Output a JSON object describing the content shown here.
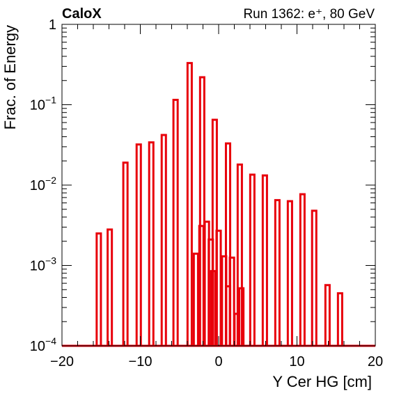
{
  "chart_data": {
    "type": "bar",
    "style": "histogram-steps",
    "label_left": "CaloX",
    "label_right": "Run 1362: e⁺, 80 GeV",
    "xlabel": "Y Cer HG [cm]",
    "ylabel": "Frac. of Energy",
    "xlim": [
      -20,
      20
    ],
    "ylim": [
      0.0001,
      1
    ],
    "yscale": "log",
    "x_ticks": [
      {
        "value": -20,
        "label": "−20"
      },
      {
        "value": -10,
        "label": "−10"
      },
      {
        "value": 0,
        "label": "0"
      },
      {
        "value": 10,
        "label": "10"
      },
      {
        "value": 20,
        "label": "20"
      }
    ],
    "y_ticks": [
      {
        "exp": -4,
        "label_base": "10",
        "label_exp": "−4"
      },
      {
        "exp": -3,
        "label_base": "10",
        "label_exp": "−3"
      },
      {
        "exp": -2,
        "label_base": "10",
        "label_exp": "−2"
      },
      {
        "exp": -1,
        "label_base": "10",
        "label_exp": "−1"
      },
      {
        "exp": 0,
        "label_base": "1",
        "label_exp": ""
      }
    ],
    "grid": false,
    "series": [
      {
        "color": "#e8000b",
        "points": [
          [
            -15.3,
            0.0025
          ],
          [
            -13.9,
            0.0028
          ],
          [
            -11.9,
            0.019
          ],
          [
            -10.2,
            0.032
          ],
          [
            -8.6,
            0.034
          ],
          [
            -7.0,
            0.042
          ],
          [
            -5.5,
            0.115
          ],
          [
            -3.7,
            0.33
          ],
          [
            -2.1,
            0.22
          ],
          [
            -0.5,
            0.065
          ],
          [
            1.2,
            0.033
          ],
          [
            2.7,
            0.018
          ],
          [
            4.3,
            0.0135
          ],
          [
            5.9,
            0.0132
          ],
          [
            7.5,
            0.0065
          ],
          [
            9.1,
            0.0063
          ],
          [
            10.7,
            0.0077
          ],
          [
            12.2,
            0.0048
          ],
          [
            13.9,
            0.00057
          ],
          [
            15.5,
            0.00045
          ]
        ]
      },
      {
        "color": "#e8000b",
        "points": [
          [
            -2.9,
            0.0014
          ],
          [
            -2.2,
            0.0031
          ],
          [
            -1.5,
            0.0035
          ],
          [
            -1.0,
            0.0021
          ],
          [
            -0.7,
            0.00085
          ],
          [
            0.0,
            0.0027
          ],
          [
            0.7,
            0.0013
          ],
          [
            1.2,
            0.00055
          ],
          [
            1.7,
            0.00125
          ],
          [
            2.3,
            0.00025
          ],
          [
            2.9,
            0.00052
          ]
        ]
      }
    ]
  }
}
